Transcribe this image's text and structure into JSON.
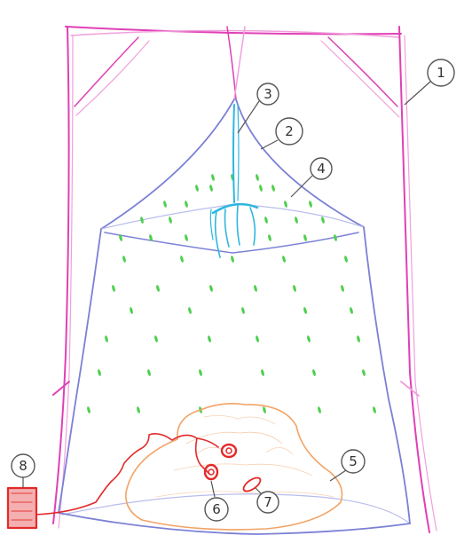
{
  "colors": {
    "frame": "#e040b5",
    "frame_light": "#f0a0dc",
    "net": "#7b80d6",
    "net_light": "#b9bcec",
    "dots": "#4ccf4c",
    "hook": "#2fb6e0",
    "mound": "#f2a366",
    "wire": "#e32a2a",
    "callout": "#555555"
  },
  "callouts": [
    {
      "id": "1",
      "label": "1"
    },
    {
      "id": "2",
      "label": "2"
    },
    {
      "id": "3",
      "label": "3"
    },
    {
      "id": "4",
      "label": "4"
    },
    {
      "id": "5",
      "label": "5"
    },
    {
      "id": "6",
      "label": "6"
    },
    {
      "id": "7",
      "label": "7"
    },
    {
      "id": "8",
      "label": "8"
    }
  ],
  "icons": {
    "frame": "bed-frame-icon",
    "net": "mosquito-net-icon",
    "hook": "ceiling-hook-icon",
    "bait": "bait-source-icon",
    "sensors": "sensor-icon",
    "trap": "trap-icon",
    "device": "control-box-icon"
  }
}
